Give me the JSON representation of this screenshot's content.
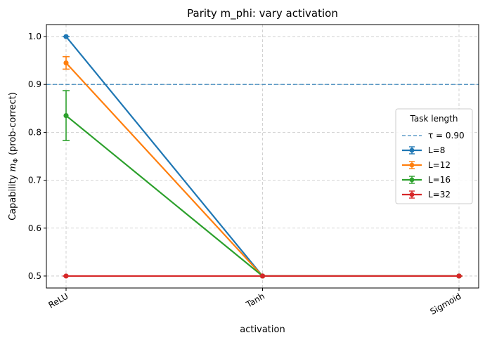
{
  "chart_data": {
    "type": "line",
    "title": "Parity m_phi: vary activation",
    "xlabel": "activation",
    "ylabel_prefix": "Capability ",
    "ylabel_math_main": "m",
    "ylabel_math_sub": "Φ",
    "ylabel_suffix": " (prob-correct)",
    "categories": [
      "ReLU",
      "Tanh",
      "Sigmoid"
    ],
    "ylim": [
      0.475,
      1.025
    ],
    "yticks": [
      "0.5",
      "0.6",
      "0.7",
      "0.8",
      "0.9",
      "1.0"
    ],
    "grid": true,
    "legend": {
      "title": "Task length",
      "placement": "center-right"
    },
    "threshold": {
      "label": "τ = 0.90",
      "value": 0.9,
      "color": "#1f77b4",
      "style": "dashed"
    },
    "series": [
      {
        "name": "L=8",
        "color": "#1f77b4",
        "values": [
          1.0,
          0.5,
          0.5
        ],
        "errors": [
          0.0,
          0.0,
          0.0
        ]
      },
      {
        "name": "L=12",
        "color": "#ff7f0e",
        "values": [
          0.945,
          0.5,
          0.5
        ],
        "errors": [
          0.013,
          0.0,
          0.0
        ]
      },
      {
        "name": "L=16",
        "color": "#2ca02c",
        "values": [
          0.835,
          0.5,
          0.5
        ],
        "errors": [
          0.052,
          0.0,
          0.0
        ]
      },
      {
        "name": "L=32",
        "color": "#d62728",
        "values": [
          0.5,
          0.5,
          0.5
        ],
        "errors": [
          0.0,
          0.0,
          0.0
        ]
      }
    ]
  }
}
